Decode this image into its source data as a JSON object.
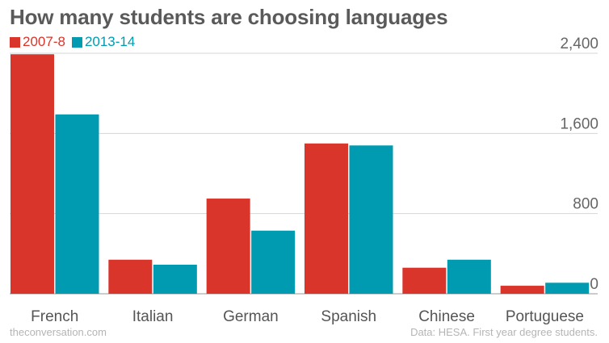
{
  "chart_data": {
    "type": "bar",
    "title": "How many students are choosing languages",
    "categories": [
      "French",
      "Italian",
      "German",
      "Spanish",
      "Chinese",
      "Portuguese"
    ],
    "series": [
      {
        "name": "2007-8",
        "color": "#d9352a",
        "values": [
          2390,
          340,
          950,
          1500,
          260,
          80
        ]
      },
      {
        "name": "2013-14",
        "color": "#009bb0",
        "values": [
          1790,
          290,
          630,
          1480,
          340,
          110
        ]
      }
    ],
    "yticks": [
      "2,400",
      "1,600",
      "800",
      "0"
    ],
    "ylim": [
      0,
      2400
    ],
    "xlabel": "",
    "ylabel": "",
    "grid": true,
    "legend_position": "top-left"
  },
  "footer": {
    "source_left": "theconversation.com",
    "source_right": "Data: HESA. First year degree students."
  }
}
